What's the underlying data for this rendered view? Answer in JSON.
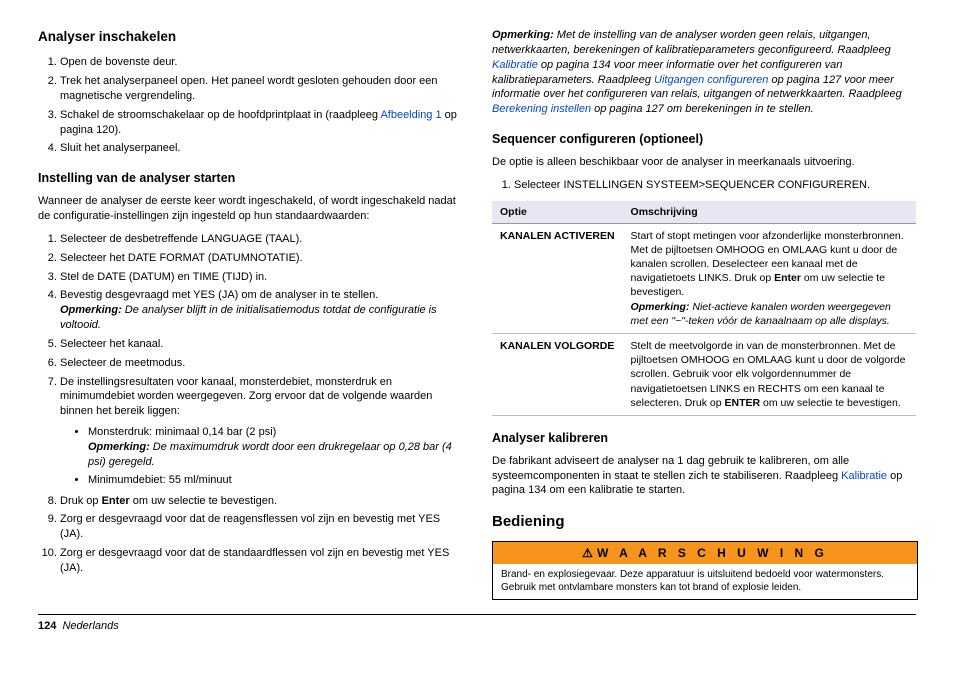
{
  "left": {
    "h1": "Analyser inschakelen",
    "list1": {
      "i1": "Open de bovenste deur.",
      "i2": "Trek het analyserpaneel open. Het paneel wordt gesloten gehouden door een magnetische vergrendeling.",
      "i3a": "Schakel de stroomschakelaar op de hoofdprintplaat in (raadpleeg ",
      "i3link": "Afbeelding 1",
      "i3b": " op pagina 120).",
      "i4": "Sluit het analyserpaneel."
    },
    "h2": "Instelling van de analyser starten",
    "p1": "Wanneer de analyser de eerste keer wordt ingeschakeld, of wordt ingeschakeld nadat de configuratie-instellingen zijn ingesteld op hun standaardwaarden:",
    "list2": {
      "i1": "Selecteer de desbetreffende LANGUAGE (TAAL).",
      "i2": "Selecteer het DATE FORMAT (DATUMNOTATIE).",
      "i3": "Stel de DATE (DATUM) en TIME (TIJD) in.",
      "i4": "Bevestig desgevraagd met YES (JA) om de analyser in te stellen.",
      "i4note_label": "Opmerking:",
      "i4note": " De analyser blijft in de initialisatiemodus totdat de configuratie is voltooid.",
      "i5": "Selecteer het kanaal.",
      "i6": "Selecteer de meetmodus.",
      "i7": "De instellingsresultaten voor kanaal, monsterdebiet, monsterdruk en minimumdebiet worden weergegeven. Zorg ervoor dat de volgende waarden binnen het bereik liggen:",
      "i7s1": "Monsterdruk: minimaal 0,14 bar (2 psi)",
      "i7s1note_label": "Opmerking:",
      "i7s1note": " De maximumdruk wordt door een drukregelaar op 0,28 bar (4 psi) geregeld.",
      "i7s2": "Minimumdebiet: 55 ml/minuut",
      "i8a": "Druk op ",
      "i8b": "Enter",
      "i8c": " om uw selectie te bevestigen.",
      "i9": "Zorg er desgevraagd voor dat de reagensflessen vol zijn en bevestig met YES (JA).",
      "i10": "Zorg er desgevraagd voor dat de standaardflessen vol zijn en bevestig met YES (JA)."
    }
  },
  "right": {
    "note_label": "Opmerking:",
    "note_a": " Met de instelling van de analyser worden geen relais, uitgangen, netwerkkaarten, berekeningen of kalibratieparameters geconfigureerd. Raadpleeg ",
    "link1": "Kalibratie",
    "note_b": " op pagina 134 voor meer informatie over het configureren van kalibratieparameters. Raadpleeg ",
    "link2": "Uitgangen configureren",
    "note_c": " op pagina 127 voor meer informatie over het configureren van relais, uitgangen of netwerkkaarten. Raadpleeg ",
    "link3": "Berekening instellen",
    "note_d": " op pagina 127 om berekeningen in te stellen.",
    "h1": "Sequencer configureren (optioneel)",
    "p1": "De optie is alleen beschikbaar voor de analyser in meerkanaals uitvoering.",
    "ol1": "Selecteer INSTELLINGEN SYSTEEM>SEQUENCER CONFIGUREREN.",
    "table": {
      "th1": "Optie",
      "th2": "Omschrijving",
      "r1k": "KANALEN ACTIVEREN",
      "r1v_a": "Start of stopt metingen voor afzonderlijke monsterbronnen. Met de pijltoetsen OMHOOG en OMLAAG kunt u door de kanalen scrollen. Deselecteer een kanaal met de navigatietoets LINKS. Druk op ",
      "r1v_b": "Enter",
      "r1v_c": " om uw selectie te bevestigen.",
      "r1note_label": "Opmerking:",
      "r1note": " Niet-actieve kanalen worden weergegeven met een \"~\"-teken vóór de kanaalnaam op alle displays.",
      "r2k": "KANALEN VOLGORDE",
      "r2v_a": "Stelt de meetvolgorde in van de monsterbronnen. Met de pijltoetsen OMHOOG en OMLAAG kunt u door de volgorde scrollen. Gebruik voor elk volgordennummer de navigatietoetsen LINKS en RECHTS om een kanaal te selecteren. Druk op ",
      "r2v_b": "ENTER",
      "r2v_c": " om uw selectie te bevestigen."
    },
    "h2": "Analyser kalibreren",
    "p2a": "De fabrikant adviseert de analyser na 1 dag gebruik te kalibreren, om alle systeemcomponenten in staat te stellen zich te stabiliseren. Raadpleeg ",
    "p2link": "Kalibratie",
    "p2b": " op pagina 134 om een kalibratie te starten.",
    "h3": "Bediening",
    "warn_title": "W A A R S C H U W I N G",
    "warn_body": "Brand- en explosiegevaar. Deze apparatuur is uitsluitend bedoeld voor watermonsters. Gebruik met ontvlambare monsters kan tot brand of explosie leiden."
  },
  "footer": {
    "page": "124",
    "lang": "Nederlands"
  }
}
